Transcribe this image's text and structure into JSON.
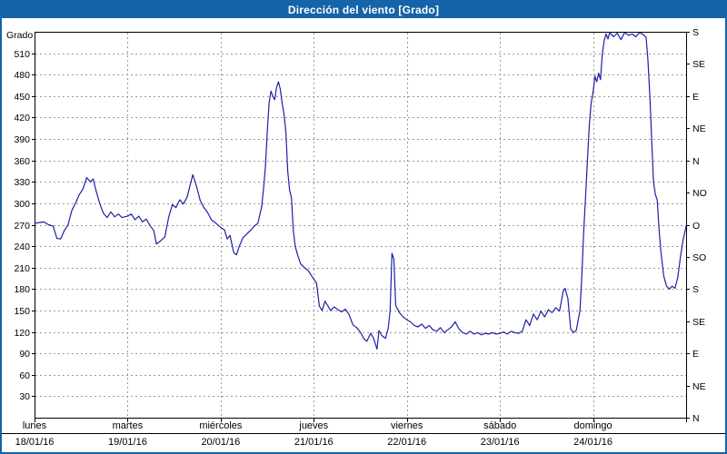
{
  "window": {
    "title": "Dirección del viento [Grado]"
  },
  "colors": {
    "titlebar": "#1563a8",
    "window_border": "#1563a8",
    "line": "#1f1fa8",
    "grid": "#999999",
    "axis": "#000000",
    "text": "#000000",
    "plot_background": "#ffffff"
  },
  "chart_data": {
    "type": "line",
    "title": "Dirección del viento [Grado]",
    "ylabel": "Grado",
    "ylim": [
      0,
      540
    ],
    "y_ticks": [
      30,
      60,
      90,
      120,
      150,
      180,
      210,
      240,
      270,
      300,
      330,
      360,
      390,
      420,
      450,
      480,
      510
    ],
    "grid": true,
    "legend": "none",
    "xlim": [
      0,
      7
    ],
    "x_unit": "days (fraction of day from 18/01/16 00:00)",
    "days": [
      {
        "name": "lunes",
        "date": "18/01/16"
      },
      {
        "name": "martes",
        "date": "19/01/16"
      },
      {
        "name": "miércoles",
        "date": "20/01/16"
      },
      {
        "name": "jueves",
        "date": "21/01/16"
      },
      {
        "name": "viernes",
        "date": "22/01/16"
      },
      {
        "name": "sábado",
        "date": "23/01/16"
      },
      {
        "name": "domingo",
        "date": "24/01/16"
      }
    ],
    "right_axis_labels": [
      {
        "deg": 540,
        "label": "S"
      },
      {
        "deg": 495,
        "label": "SE"
      },
      {
        "deg": 450,
        "label": "E"
      },
      {
        "deg": 405,
        "label": "NE"
      },
      {
        "deg": 360,
        "label": "N"
      },
      {
        "deg": 315,
        "label": "NO"
      },
      {
        "deg": 270,
        "label": "O"
      },
      {
        "deg": 225,
        "label": "SO"
      },
      {
        "deg": 180,
        "label": "S"
      },
      {
        "deg": 135,
        "label": "SE"
      },
      {
        "deg": 90,
        "label": "E"
      },
      {
        "deg": 45,
        "label": "NE"
      },
      {
        "deg": 0,
        "label": "N"
      }
    ],
    "series": [
      {
        "name": "Dirección del viento",
        "color": "#1f1fa8",
        "x": [
          0.0,
          0.05,
          0.1,
          0.15,
          0.2,
          0.24,
          0.28,
          0.32,
          0.36,
          0.4,
          0.44,
          0.48,
          0.52,
          0.56,
          0.6,
          0.63,
          0.66,
          0.7,
          0.74,
          0.78,
          0.82,
          0.86,
          0.9,
          0.94,
          1.0,
          1.04,
          1.08,
          1.12,
          1.16,
          1.2,
          1.24,
          1.28,
          1.31,
          1.35,
          1.4,
          1.44,
          1.48,
          1.52,
          1.56,
          1.6,
          1.64,
          1.7,
          1.74,
          1.78,
          1.82,
          1.86,
          1.9,
          1.95,
          2.0,
          2.04,
          2.07,
          2.1,
          2.14,
          2.17,
          2.2,
          2.24,
          2.28,
          2.32,
          2.36,
          2.4,
          2.44,
          2.46,
          2.48,
          2.5,
          2.52,
          2.54,
          2.56,
          2.58,
          2.6,
          2.62,
          2.64,
          2.66,
          2.68,
          2.7,
          2.72,
          2.74,
          2.76,
          2.78,
          2.8,
          2.83,
          2.86,
          2.9,
          2.94,
          2.98,
          3.0,
          3.03,
          3.06,
          3.09,
          3.12,
          3.15,
          3.18,
          3.22,
          3.26,
          3.3,
          3.34,
          3.38,
          3.42,
          3.46,
          3.5,
          3.54,
          3.57,
          3.61,
          3.64,
          3.68,
          3.7,
          3.73,
          3.77,
          3.8,
          3.82,
          3.84,
          3.86,
          3.88,
          3.92,
          3.96,
          4.0,
          4.04,
          4.08,
          4.12,
          4.16,
          4.2,
          4.24,
          4.28,
          4.32,
          4.36,
          4.4,
          4.44,
          4.48,
          4.52,
          4.56,
          4.6,
          4.64,
          4.68,
          4.72,
          4.76,
          4.8,
          4.84,
          4.88,
          4.92,
          4.96,
          5.0,
          5.04,
          5.08,
          5.12,
          5.16,
          5.2,
          5.24,
          5.28,
          5.32,
          5.36,
          5.4,
          5.44,
          5.48,
          5.52,
          5.56,
          5.6,
          5.64,
          5.68,
          5.7,
          5.73,
          5.76,
          5.79,
          5.82,
          5.86,
          5.88,
          5.9,
          5.92,
          5.94,
          5.96,
          5.98,
          6.0,
          6.02,
          6.04,
          6.06,
          6.08,
          6.1,
          6.12,
          6.14,
          6.16,
          6.18,
          6.22,
          6.26,
          6.3,
          6.34,
          6.38,
          6.42,
          6.46,
          6.5,
          6.54,
          6.57,
          6.59,
          6.61,
          6.63,
          6.65,
          6.67,
          6.69,
          6.71,
          6.73,
          6.76,
          6.79,
          6.82,
          6.85,
          6.88,
          6.91,
          6.94,
          6.97,
          7.0
        ],
        "y": [
          272,
          273,
          274,
          270,
          268,
          251,
          250,
          262,
          270,
          290,
          300,
          312,
          320,
          336,
          330,
          334,
          318,
          300,
          286,
          280,
          288,
          281,
          285,
          280,
          282,
          285,
          277,
          282,
          274,
          278,
          269,
          262,
          243,
          247,
          253,
          280,
          298,
          294,
          305,
          299,
          309,
          340,
          324,
          304,
          294,
          287,
          277,
          272,
          266,
          263,
          250,
          255,
          231,
          228,
          240,
          252,
          257,
          262,
          268,
          272,
          295,
          320,
          350,
          400,
          440,
          457,
          450,
          445,
          462,
          470,
          460,
          440,
          425,
          400,
          345,
          318,
          308,
          262,
          240,
          226,
          215,
          210,
          206,
          198,
          194,
          188,
          156,
          150,
          163,
          157,
          150,
          155,
          151,
          148,
          152,
          144,
          130,
          126,
          120,
          110,
          107,
          118,
          112,
          96,
          122,
          115,
          111,
          125,
          150,
          230,
          222,
          157,
          147,
          141,
          137,
          134,
          129,
          127,
          131,
          125,
          129,
          123,
          121,
          126,
          119,
          123,
          127,
          134,
          124,
          119,
          117,
          121,
          117,
          119,
          116,
          118,
          117,
          119,
          117,
          118,
          120,
          117,
          121,
          119,
          118,
          121,
          137,
          129,
          145,
          137,
          149,
          141,
          151,
          147,
          154,
          149,
          177,
          181,
          167,
          124,
          119,
          122,
          150,
          200,
          260,
          310,
          360,
          410,
          440,
          455,
          478,
          470,
          482,
          473,
          509,
          528,
          537,
          530,
          539,
          533,
          538,
          529,
          539,
          535,
          537,
          533,
          539,
          536,
          532,
          500,
          450,
          390,
          330,
          312,
          305,
          262,
          232,
          198,
          184,
          180,
          184,
          181,
          196,
          226,
          250,
          268
        ]
      }
    ]
  }
}
